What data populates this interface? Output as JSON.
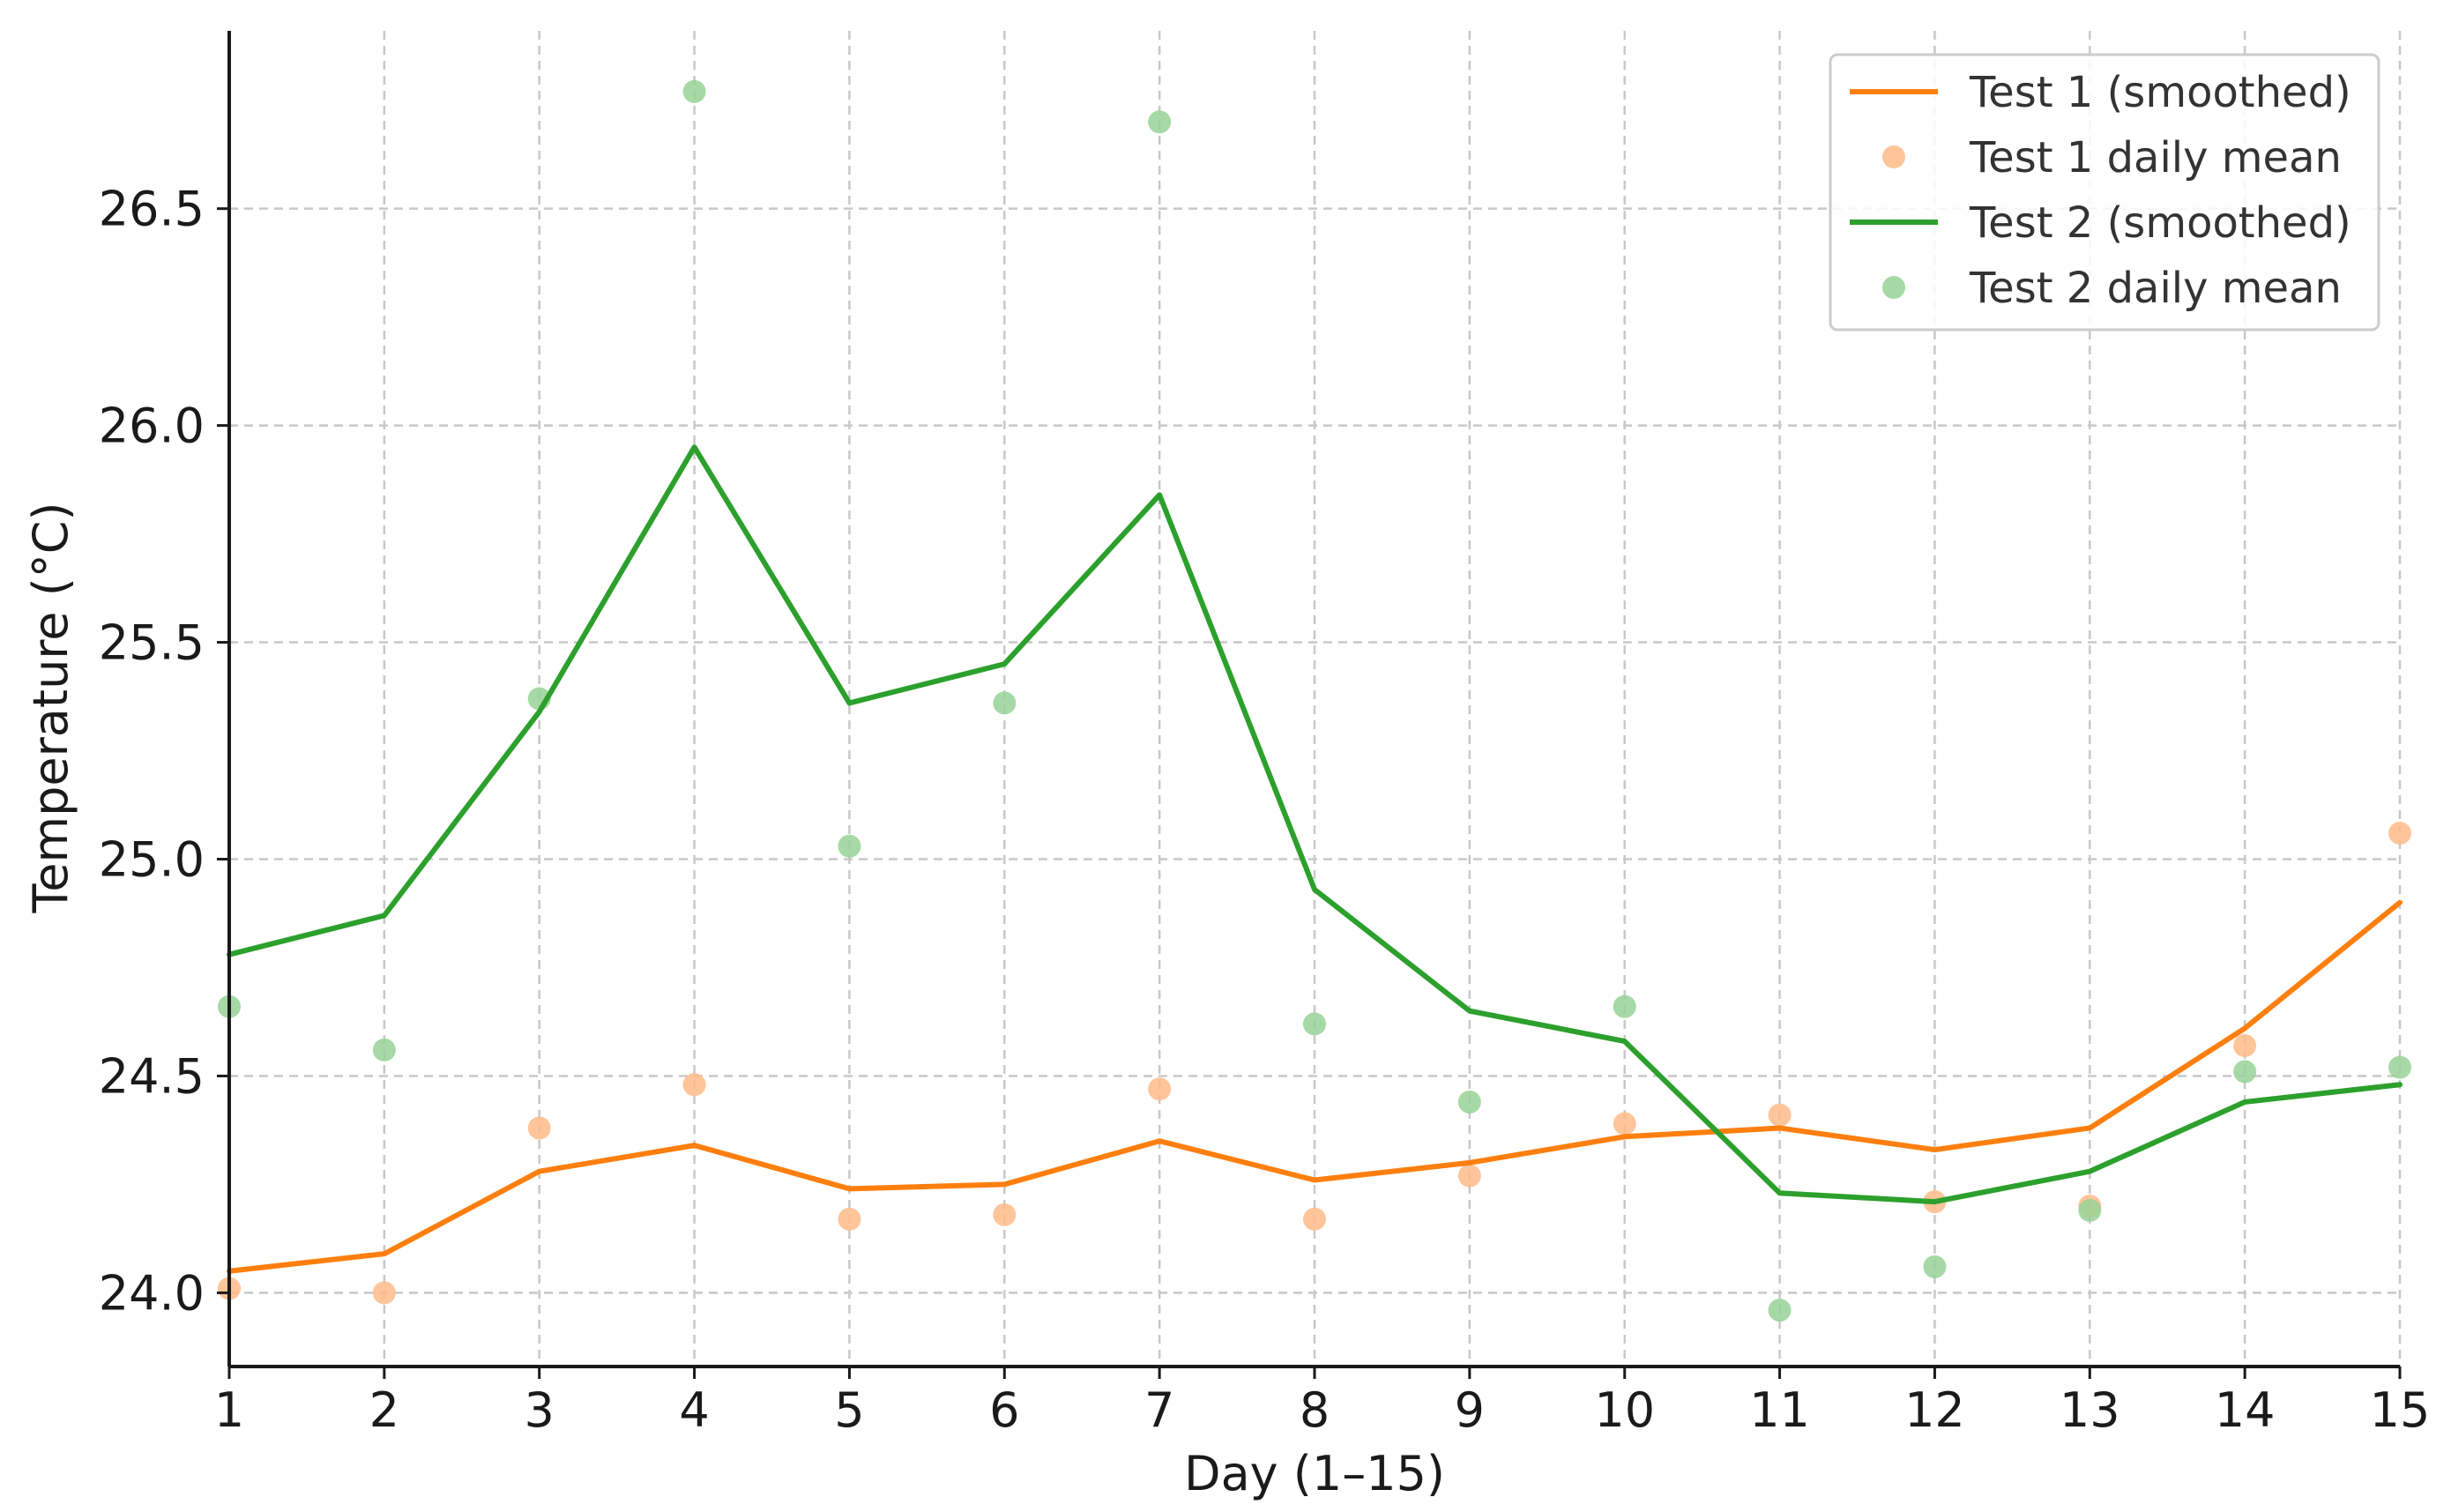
{
  "chart_data": {
    "type": "line",
    "title": "",
    "xlabel": "Day (1–15)",
    "ylabel": "Temperature (°C)",
    "xlim": [
      1,
      15
    ],
    "ylim": [
      23.83,
      26.91
    ],
    "x_ticks": [
      1,
      2,
      3,
      4,
      5,
      6,
      7,
      8,
      9,
      10,
      11,
      12,
      13,
      14,
      15
    ],
    "y_ticks": [
      24.0,
      24.5,
      25.0,
      25.5,
      26.0,
      26.5
    ],
    "y_tick_labels": [
      "24.0",
      "24.5",
      "25.0",
      "25.5",
      "26.0",
      "26.5"
    ],
    "grid": true,
    "legend_position": "top-right",
    "x": [
      1,
      2,
      3,
      4,
      5,
      6,
      7,
      8,
      9,
      10,
      11,
      12,
      13,
      14,
      15
    ],
    "series": [
      {
        "name": "Test 1 (smoothed)",
        "kind": "line",
        "color": "#ff7f0e",
        "values": [
          24.05,
          24.09,
          24.28,
          24.34,
          24.24,
          24.25,
          24.35,
          24.26,
          24.3,
          24.36,
          24.38,
          24.33,
          24.38,
          24.61,
          24.9
        ]
      },
      {
        "name": "Test 1 daily mean",
        "kind": "scatter",
        "color": "#ffbb88",
        "values": [
          24.01,
          24.0,
          24.38,
          24.48,
          24.17,
          24.18,
          24.47,
          24.17,
          24.27,
          24.39,
          24.41,
          24.21,
          24.2,
          24.57,
          25.06
        ]
      },
      {
        "name": "Test 2 (smoothed)",
        "kind": "line",
        "color": "#2ca02c",
        "values": [
          24.78,
          24.87,
          25.34,
          25.95,
          25.36,
          25.45,
          25.84,
          24.93,
          24.65,
          24.58,
          24.23,
          24.21,
          24.28,
          24.44,
          24.48
        ]
      },
      {
        "name": "Test 2 daily mean",
        "kind": "scatter",
        "color": "#96d296",
        "values": [
          24.66,
          24.56,
          25.37,
          26.77,
          25.03,
          25.36,
          26.7,
          24.62,
          24.44,
          24.66,
          23.96,
          24.06,
          24.19,
          24.51,
          24.52
        ]
      }
    ]
  }
}
